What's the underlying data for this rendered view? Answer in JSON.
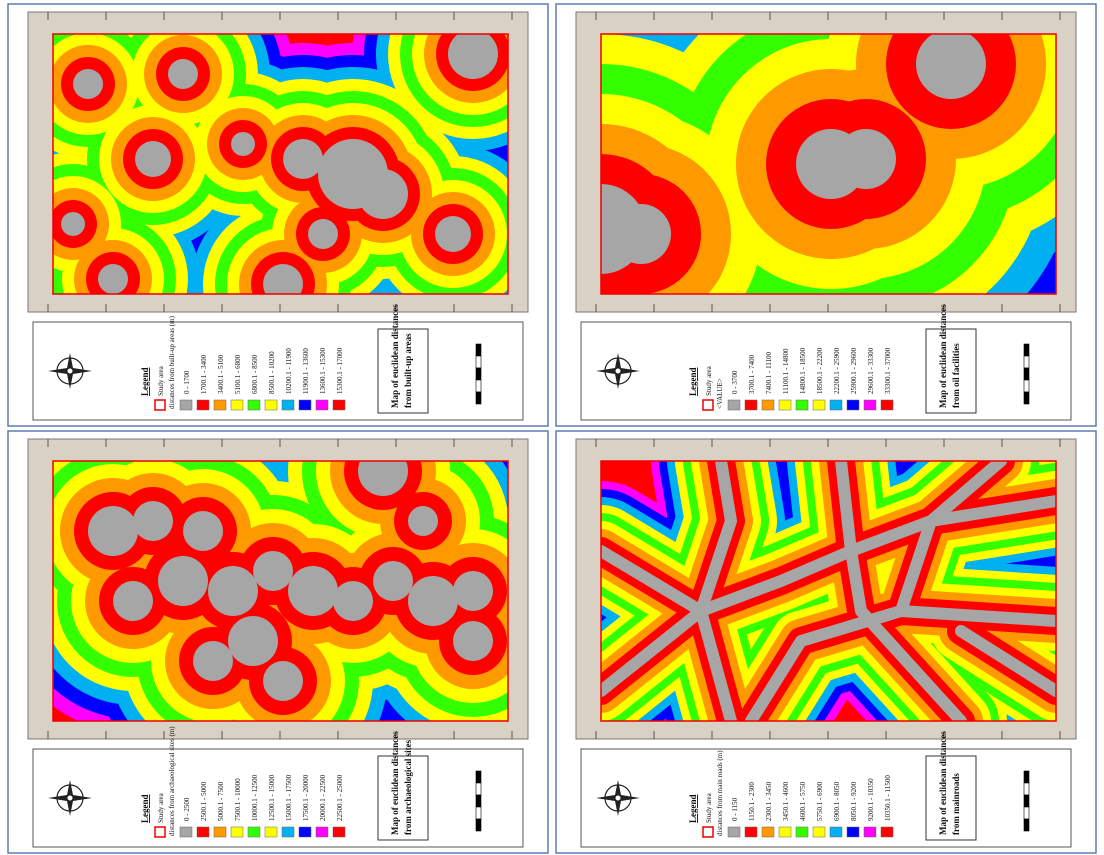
{
  "panels": [
    {
      "legend_heading": "Legend",
      "study_area": "Study area",
      "legend_title": "distances from built-up areas (m)",
      "classes": [
        {
          "label": "0 - 1700",
          "color": "#a6a6a6"
        },
        {
          "label": "1700.1 - 3400",
          "color": "#ff0000"
        },
        {
          "label": "3400.1 - 5100",
          "color": "#ff9900"
        },
        {
          "label": "5100.1 - 6800",
          "color": "#ffff00"
        },
        {
          "label": "6800.1 - 8500",
          "color": "#33ff00"
        },
        {
          "label": "8500.1 - 10200",
          "color": "#ffff00"
        },
        {
          "label": "10200.1 - 11900",
          "color": "#00b0f0"
        },
        {
          "label": "11900.1 - 13600",
          "color": "#0000ff"
        },
        {
          "label": "13600.1 - 15300",
          "color": "#ff00ff"
        },
        {
          "label": "15300.1 - 17000",
          "color": "#ff0000"
        }
      ],
      "title": [
        "Map of euclidean distances",
        "from built-up areas"
      ]
    },
    {
      "legend_heading": "Legend",
      "study_area": "Study area",
      "legend_title": "<VALUE>",
      "classes": [
        {
          "label": "0 - 3700",
          "color": "#a6a6a6"
        },
        {
          "label": "3700.1 - 7400",
          "color": "#ff0000"
        },
        {
          "label": "7400.1 - 11100",
          "color": "#ff9900"
        },
        {
          "label": "11100.1 - 14800",
          "color": "#ffff00"
        },
        {
          "label": "14800.1 - 18500",
          "color": "#33ff00"
        },
        {
          "label": "18500.1 - 22200",
          "color": "#ffff00"
        },
        {
          "label": "22200.1 - 25900",
          "color": "#00b0f0"
        },
        {
          "label": "25900.1 - 29600",
          "color": "#0000ff"
        },
        {
          "label": "29600.1 - 33300",
          "color": "#ff00ff"
        },
        {
          "label": "33300.1 - 37000",
          "color": "#ff0000"
        }
      ],
      "title": [
        "Map of euclidean distances",
        "from oil facilities"
      ]
    },
    {
      "legend_heading": "Legend",
      "study_area": "Study area",
      "legend_title": "distances from archaeological sites (m)",
      "classes": [
        {
          "label": "0 - 2500",
          "color": "#a6a6a6"
        },
        {
          "label": "2500.1 - 5000",
          "color": "#ff0000"
        },
        {
          "label": "5000.1 - 7500",
          "color": "#ff9900"
        },
        {
          "label": "7500.1 - 10000",
          "color": "#ffff00"
        },
        {
          "label": "10000.1 - 12500",
          "color": "#33ff00"
        },
        {
          "label": "12500.1 - 15000",
          "color": "#ffff00"
        },
        {
          "label": "15000.1 - 17500",
          "color": "#00b0f0"
        },
        {
          "label": "17500.1 - 20000",
          "color": "#0000ff"
        },
        {
          "label": "20000.1 - 22500",
          "color": "#ff00ff"
        },
        {
          "label": "22500.1 - 25000",
          "color": "#ff0000"
        }
      ],
      "title": [
        "Map of euclidean distances",
        "from archaeological sites"
      ]
    },
    {
      "legend_heading": "Legend",
      "study_area": "Study area",
      "legend_title": "distances from main roads (m)",
      "classes": [
        {
          "label": "0 - 1150",
          "color": "#a6a6a6"
        },
        {
          "label": "1150.1 - 2300",
          "color": "#ff0000"
        },
        {
          "label": "2300.1 - 3450",
          "color": "#ff9900"
        },
        {
          "label": "3450.1 - 4600",
          "color": "#ffff00"
        },
        {
          "label": "4600.1 - 5750",
          "color": "#33ff00"
        },
        {
          "label": "5750.1 - 6900",
          "color": "#ffff00"
        },
        {
          "label": "6900.1 - 8050",
          "color": "#00b0f0"
        },
        {
          "label": "8050.1 - 9200",
          "color": "#0000ff"
        },
        {
          "label": "9200.1 - 10350",
          "color": "#ff00ff"
        },
        {
          "label": "10350.1 - 11500",
          "color": "#ff0000"
        }
      ],
      "title": [
        "Map of euclidean distances",
        "from mainroads"
      ]
    }
  ]
}
